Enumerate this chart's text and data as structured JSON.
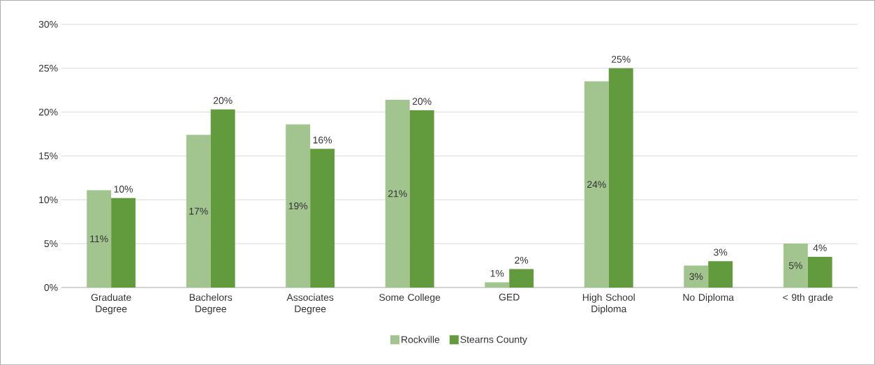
{
  "chart_data": {
    "type": "bar",
    "categories": [
      "Graduate Degree",
      "Bachelors Degree",
      "Associates Degree",
      "Some College",
      "GED",
      "High School Diploma",
      "No Diploma",
      "< 9th grade"
    ],
    "series": [
      {
        "name": "Rockville",
        "color": "#a2c48f",
        "values": [
          11.1,
          17.4,
          18.6,
          21.4,
          0.6,
          23.5,
          2.5,
          5.0
        ],
        "value_labels": [
          "11%",
          "17%",
          "19%",
          "21%",
          "1%",
          "24%",
          "3%",
          "5%"
        ]
      },
      {
        "name": "Stearns County",
        "color": "#629a3e",
        "values": [
          10.2,
          20.3,
          15.8,
          20.2,
          2.1,
          25.0,
          3.0,
          3.5
        ],
        "value_labels": [
          "10%",
          "20%",
          "16%",
          "20%",
          "2%",
          "25%",
          "3%",
          "4%"
        ]
      }
    ],
    "ylim": [
      0,
      30
    ],
    "yticks": [
      {
        "value": 0,
        "label": "0%"
      },
      {
        "value": 5,
        "label": "5%"
      },
      {
        "value": 10,
        "label": "10%"
      },
      {
        "value": 15,
        "label": "15%"
      },
      {
        "value": 20,
        "label": "20%"
      },
      {
        "value": 25,
        "label": "25%"
      },
      {
        "value": 30,
        "label": "30%"
      }
    ],
    "grid": "y",
    "legend": "bottom"
  }
}
